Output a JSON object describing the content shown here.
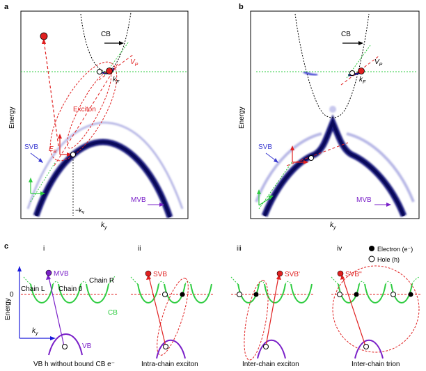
{
  "panel_a": {
    "label": "a",
    "ylabel": "Energy",
    "xlabel_k": "k",
    "xlabel_sub": "y",
    "cb_label": "CB",
    "exciton_label": "Exciton",
    "vp_label": "V",
    "vp_sub": "P",
    "kf_label": "k",
    "kf_sub": "F",
    "eb_label": "E",
    "eb_sub": "B",
    "svb_label": "SVB",
    "mvb_label": "MVB",
    "kv_label": "−k",
    "kv_sub": "v"
  },
  "panel_b": {
    "label": "b",
    "ylabel": "Energy",
    "xlabel_k": "k",
    "xlabel_sub": "y",
    "cb_label": "CB",
    "vp_label": "V",
    "vp_sub": "P",
    "kf_label": "k",
    "kf_sub": "F",
    "svb_label": "SVB",
    "mvb_label": "MVB"
  },
  "panel_c": {
    "label": "c",
    "sub_i": {
      "roman": "i",
      "mvb_label": "MVB",
      "chain_l": "Chain L",
      "chain_0": "Chain 0",
      "chain_r": "Chain R",
      "zero": "0",
      "cb_label": "CB",
      "energy_label": "Energy",
      "k_label": "k",
      "k_sub": "y",
      "vb_label": "VB",
      "caption": "VB h without bound CB e⁻"
    },
    "sub_ii": {
      "roman": "ii",
      "band_label": "SVB",
      "caption": "Intra-chain exciton"
    },
    "sub_iii": {
      "roman": "iii",
      "band_label": "SVB'",
      "caption": "Inter-chain exciton"
    },
    "sub_iv": {
      "roman": "iv",
      "band_label": "SVB''",
      "caption": "Inter-chain trion",
      "legend_electron": "Electron (e⁻)",
      "legend_hole": "Hole (h)"
    }
  }
}
